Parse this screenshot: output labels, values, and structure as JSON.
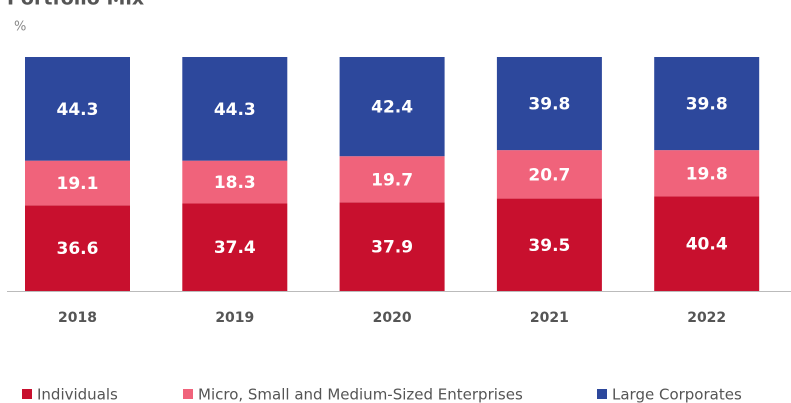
{
  "chart_data": {
    "type": "stacked_bar",
    "title": "Portfolio Mix",
    "subtitle": "%",
    "categories": [
      "2018",
      "2019",
      "2020",
      "2021",
      "2022"
    ],
    "series": [
      {
        "name": "Individuals",
        "color": "#c8102e",
        "values": [
          36.6,
          37.4,
          37.9,
          39.5,
          40.4
        ]
      },
      {
        "name": "Micro, Small and Medium-Sized Enterprises",
        "color": "#f0637b",
        "values": [
          19.1,
          18.3,
          19.7,
          20.7,
          19.8
        ]
      },
      {
        "name": "Large Corporates",
        "color": "#2d489c",
        "values": [
          44.3,
          44.3,
          42.4,
          39.8,
          39.8
        ]
      }
    ]
  }
}
